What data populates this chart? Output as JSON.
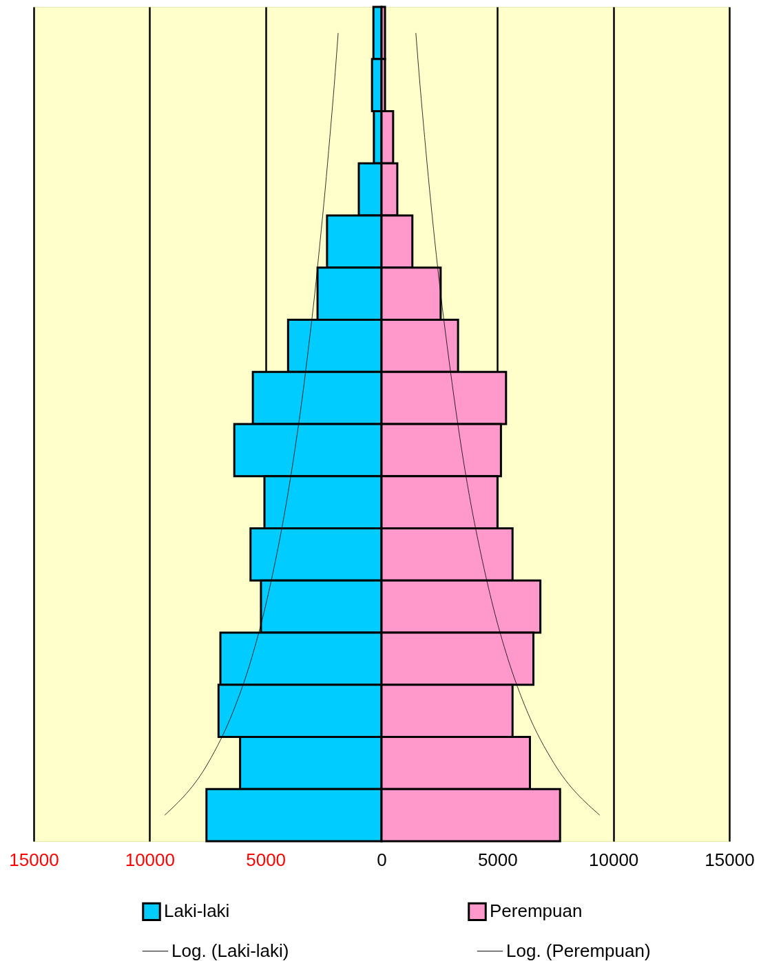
{
  "chart_data": {
    "type": "bar",
    "orientation": "horizontal",
    "categories": [
      null,
      null,
      null,
      null,
      null,
      null,
      null,
      null,
      null,
      null,
      null,
      null,
      null,
      null,
      null,
      null
    ],
    "series": [
      {
        "name": "Laki-laki",
        "color": "#00ccff",
        "values": [
          -350,
          -410,
          -330,
          -980,
          -2350,
          -2760,
          -4030,
          -5550,
          -6350,
          -5050,
          -5650,
          -5200,
          -6950,
          -7030,
          -6100,
          -7550
        ]
      },
      {
        "name": "Perempuan",
        "color": "#ff99cc",
        "values": [
          150,
          150,
          500,
          680,
          1330,
          2550,
          3300,
          5370,
          5150,
          5000,
          5650,
          6850,
          6550,
          5650,
          6400,
          7700
        ]
      },
      {
        "name": "Log. (Laki-laki)",
        "type": "line",
        "color": "#000000",
        "values": [
          -1870,
          -2040,
          -2230,
          -2430,
          -2650,
          -2880,
          -3140,
          -3420,
          -3740,
          -4100,
          -4520,
          -5010,
          -5610,
          -6390,
          -7480,
          -9350
        ]
      },
      {
        "name": "Log. (Perempuan)",
        "type": "line",
        "color": "#000000",
        "values": [
          1480,
          1660,
          1860,
          2070,
          2300,
          2550,
          2830,
          3130,
          3460,
          3840,
          4290,
          4810,
          5450,
          6270,
          7430,
          9410
        ]
      }
    ],
    "xlim": [
      -15000,
      15000
    ],
    "xticks": [
      {
        "value": -15000,
        "label": "15000"
      },
      {
        "value": -10000,
        "label": "10000"
      },
      {
        "value": -5000,
        "label": "5000"
      },
      0,
      5000,
      10000,
      15000
    ],
    "grid": "x",
    "legend": "bottom",
    "stacked": true
  }
}
